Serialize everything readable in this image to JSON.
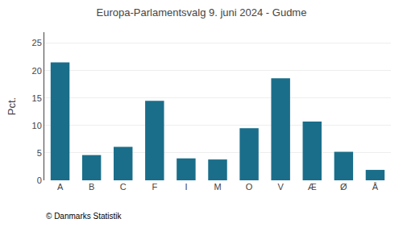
{
  "chart_data": {
    "type": "bar",
    "title": "Europa-Parlamentsvalg 9. juni 2024 - Gudme",
    "ylabel": "Pct.",
    "annotations": [
      "© Danmarks Statistik"
    ],
    "categories": [
      "A",
      "B",
      "C",
      "F",
      "I",
      "M",
      "O",
      "V",
      "Æ",
      "Ø",
      "Å"
    ],
    "values": [
      21.5,
      4.6,
      6.1,
      14.5,
      4.0,
      3.8,
      9.5,
      18.6,
      10.7,
      5.2,
      1.9
    ],
    "color": "#1a6e8a",
    "ylim": [
      0,
      27
    ],
    "yticks": [
      0,
      5,
      10,
      15,
      20,
      25
    ],
    "grid": true
  }
}
